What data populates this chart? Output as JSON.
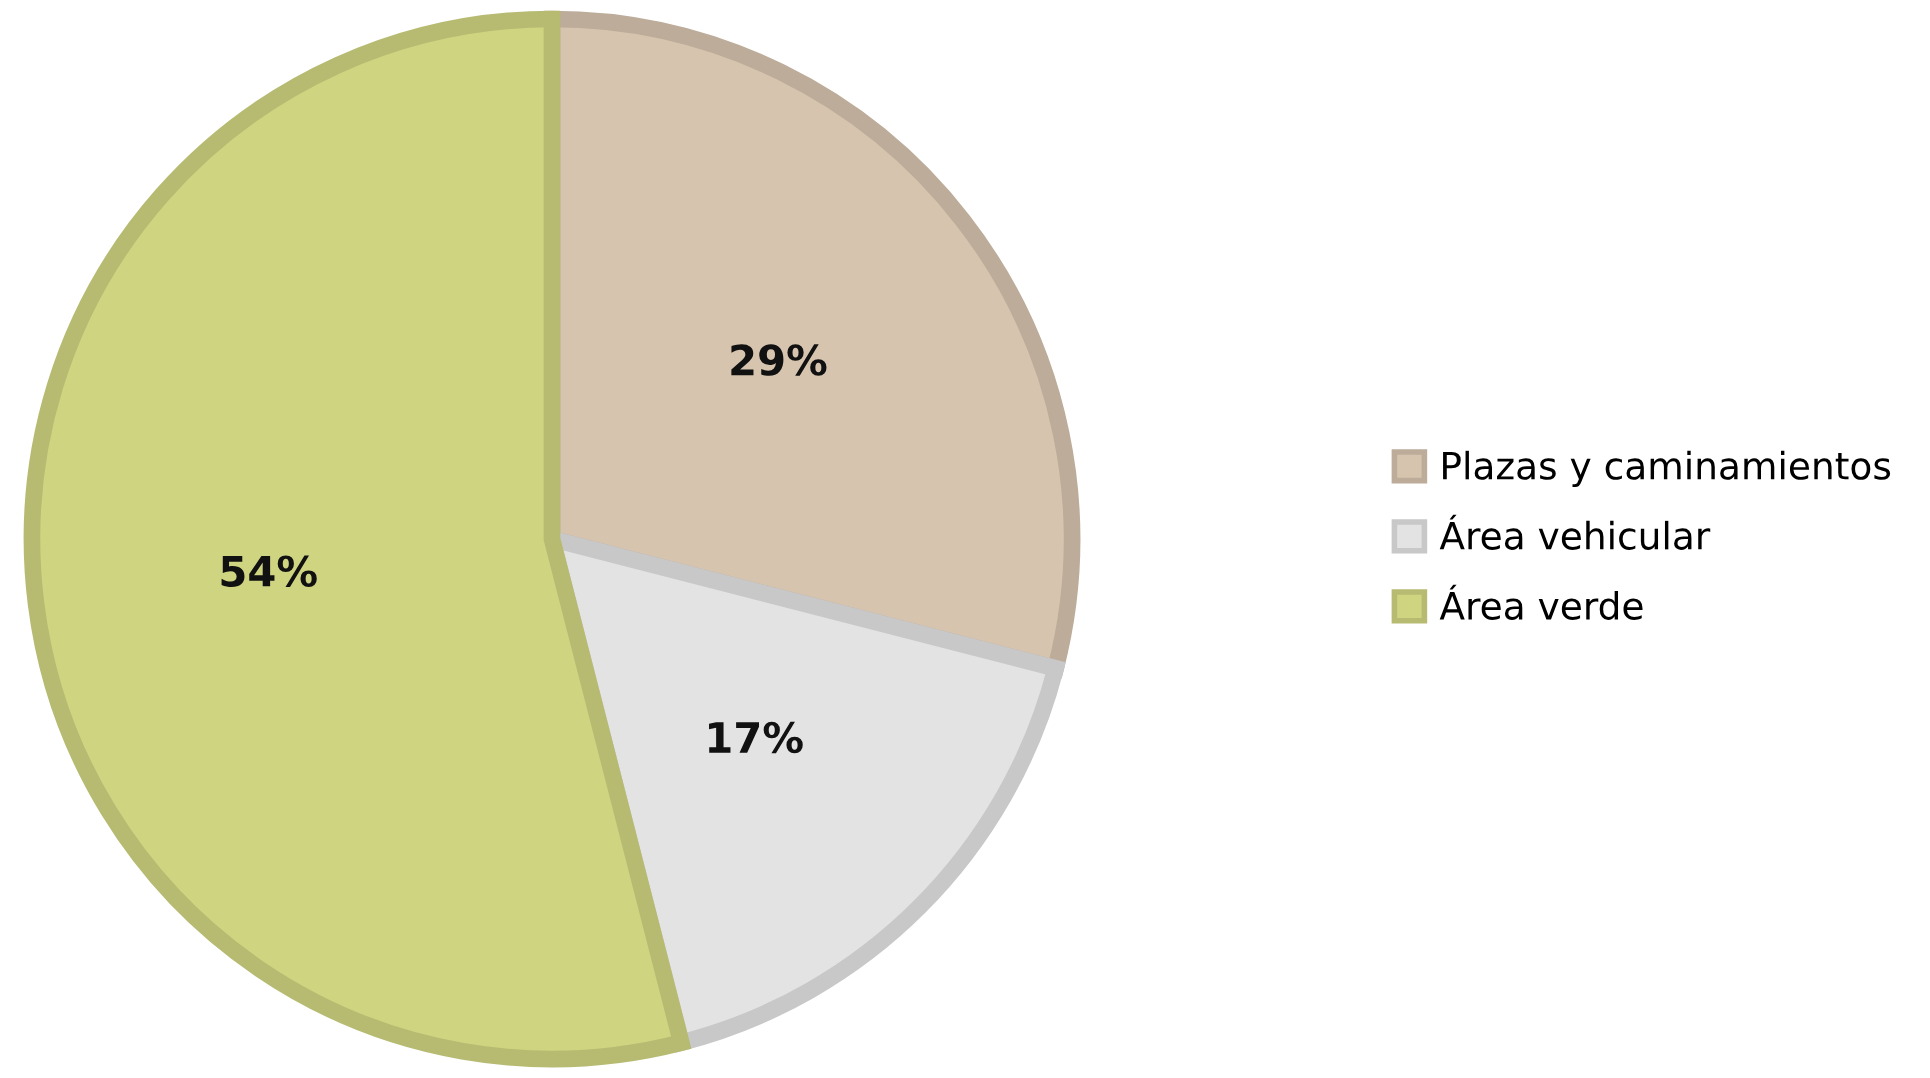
{
  "chart_data": {
    "type": "pie",
    "categories": [
      "Plazas y caminamientos",
      "Área vehicular",
      "Área verde"
    ],
    "values": [
      29,
      17,
      54
    ],
    "colors": [
      "#d6c4ae",
      "#e3e3e3",
      "#cfd480"
    ],
    "value_labels": [
      "29%",
      "17%",
      "54%"
    ],
    "legend": "right"
  }
}
